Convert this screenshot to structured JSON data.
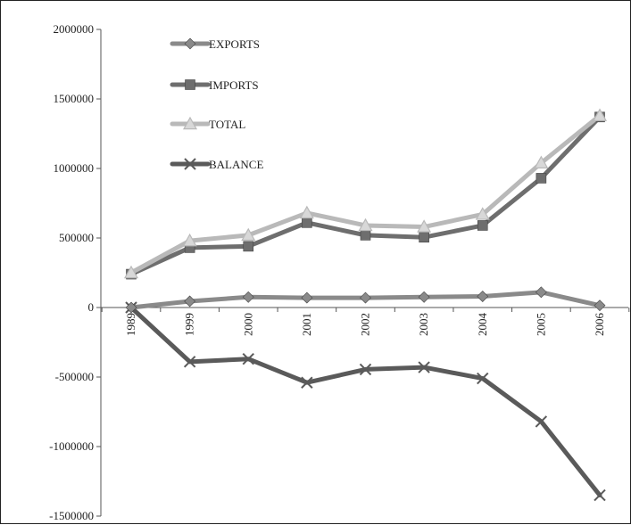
{
  "chart_data": {
    "type": "line",
    "title": "",
    "xlabel": "",
    "ylabel": "",
    "categories": [
      "1989",
      "1999",
      "2000",
      "2001",
      "2002",
      "2003",
      "2004",
      "2005",
      "2006"
    ],
    "ylim": [
      -1500000,
      2000000
    ],
    "y_ticks": [
      -1500000,
      -1000000,
      -500000,
      0,
      500000,
      1000000,
      1500000,
      2000000
    ],
    "y_tick_labels": [
      "-1500000",
      "-1000000",
      "-500000",
      "0",
      "500000",
      "1000000",
      "1500000",
      "2000000"
    ],
    "grid": false,
    "legend_position": "top-left",
    "series": [
      {
        "name": "EXPORTS",
        "marker": "diamond",
        "color": "#8a8a8a",
        "values": [
          0,
          45000,
          75000,
          70000,
          70000,
          75000,
          80000,
          110000,
          15000
        ]
      },
      {
        "name": "IMPORTS",
        "marker": "square",
        "color": "#6e6e6e",
        "values": [
          240000,
          430000,
          440000,
          610000,
          520000,
          505000,
          590000,
          930000,
          1370000
        ]
      },
      {
        "name": "TOTAL",
        "marker": "triangle",
        "color": "#b9b9b9",
        "values": [
          250000,
          480000,
          520000,
          680000,
          590000,
          580000,
          670000,
          1040000,
          1380000
        ]
      },
      {
        "name": "BALANCE",
        "marker": "x",
        "color": "#5a5a5a",
        "values": [
          0,
          -390000,
          -370000,
          -540000,
          -445000,
          -430000,
          -510000,
          -820000,
          -1350000
        ]
      }
    ]
  }
}
